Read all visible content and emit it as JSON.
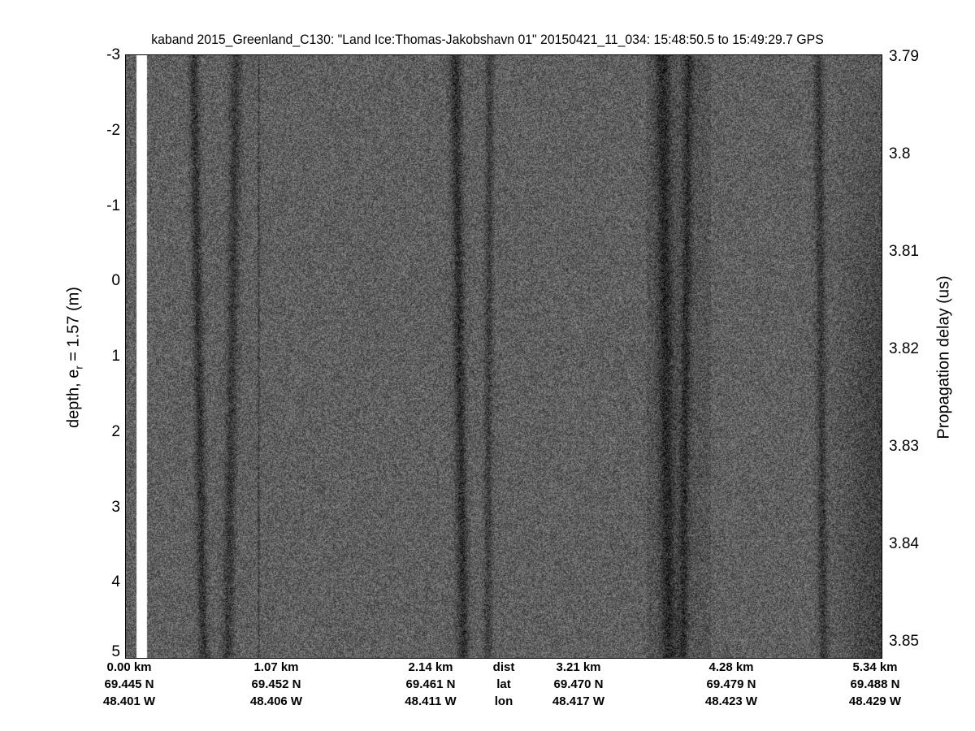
{
  "chart_data": {
    "type": "heatmap",
    "title": "kaband 2015_Greenland_C130: \"Land Ice:Thomas-Jakobshavn 01\"  20150421_11_034: 15:48:50.5 to 15:49:29.7 GPS",
    "ylabel": "depth, e",
    "ylabel_sub": "r",
    "ylabel_rest": " = 1.57 (m)",
    "y2label": "Propagation delay (us)",
    "ylim": [
      -3,
      5
    ],
    "y_reversed": true,
    "y_ticks": [
      "-3",
      "-2",
      "-1",
      "0",
      "1",
      "2",
      "3",
      "4",
      "5"
    ],
    "y2lim": [
      3.79,
      3.8517
    ],
    "y2_ticks": [
      "3.79",
      "3.8",
      "3.81",
      "3.82",
      "3.83",
      "3.84",
      "3.85"
    ],
    "colormap": "gray",
    "x_rows": {
      "row_labels": [
        "dist",
        "lat",
        "lon"
      ],
      "dist": [
        "0.00 km",
        "1.07 km",
        "2.14 km",
        "3.21 km",
        "4.28 km",
        "5.34 km"
      ],
      "lat": [
        "69.445 N",
        "69.452 N",
        "69.461 N",
        "69.470 N",
        "69.479 N",
        "69.488 N"
      ],
      "lon": [
        "48.401 W",
        "48.406 W",
        "48.411 W",
        "48.417 W",
        "48.423 W",
        "48.429 W"
      ]
    }
  }
}
